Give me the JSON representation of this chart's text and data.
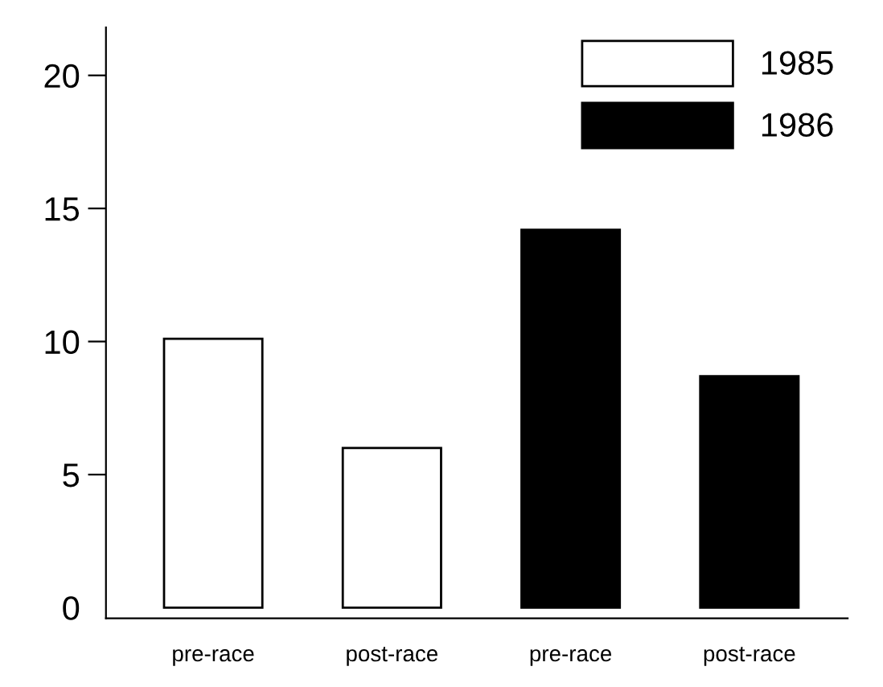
{
  "chart_data": {
    "type": "bar",
    "categories": [
      "pre-race",
      "post-race",
      "pre-race",
      "post-race"
    ],
    "series": [
      {
        "name": "1985",
        "color": "#ffffff",
        "values": [
          10.1,
          6.0,
          null,
          null
        ]
      },
      {
        "name": "1986",
        "color": "#000000",
        "values": [
          null,
          null,
          14.2,
          8.7
        ]
      }
    ],
    "ylim": [
      -0.4,
      21.8
    ],
    "yticks": [
      0,
      5,
      10,
      15,
      20
    ],
    "grid": false,
    "legend": "top right"
  }
}
